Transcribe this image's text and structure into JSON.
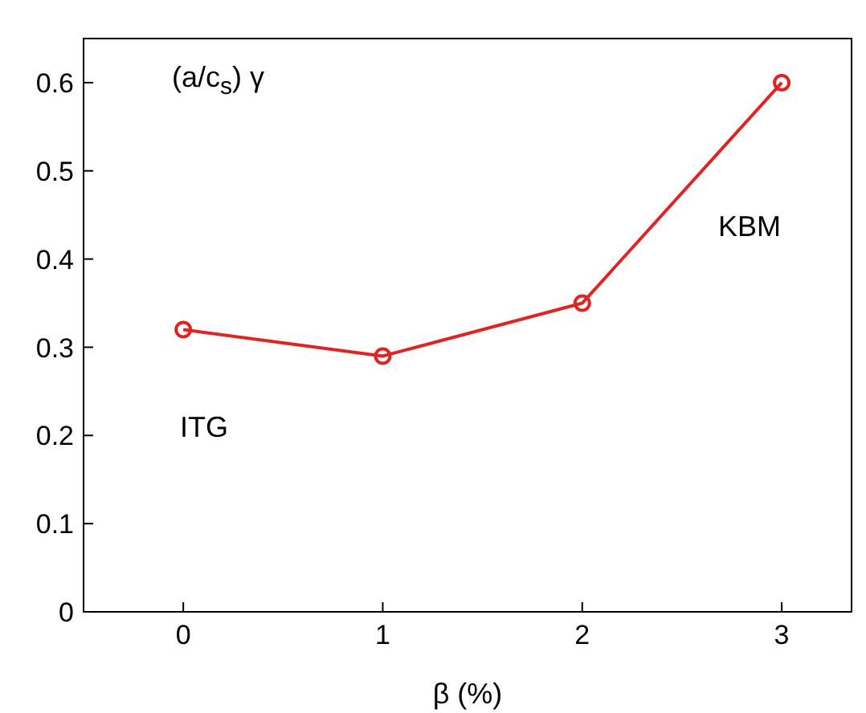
{
  "chart_data": {
    "type": "line",
    "ylabel": "(a/c$_{s}$) γ",
    "xlabel": "β (%)",
    "x": [
      0,
      1,
      2,
      3
    ],
    "series": [
      {
        "color": "#e02424",
        "values": [
          0.32,
          0.29,
          0.35,
          0.6
        ]
      }
    ],
    "xlim": [
      -0.5,
      3.35
    ],
    "xticks": [
      0,
      1,
      2,
      3
    ],
    "ylim": [
      0,
      0.65
    ],
    "yticks": [
      0,
      0.1,
      0.2,
      0.3,
      0.4,
      0.5,
      0.6
    ],
    "annotations": [
      "ITG",
      "KBM"
    ],
    "marker": "circle",
    "line_style": "solid",
    "grid": false
  }
}
